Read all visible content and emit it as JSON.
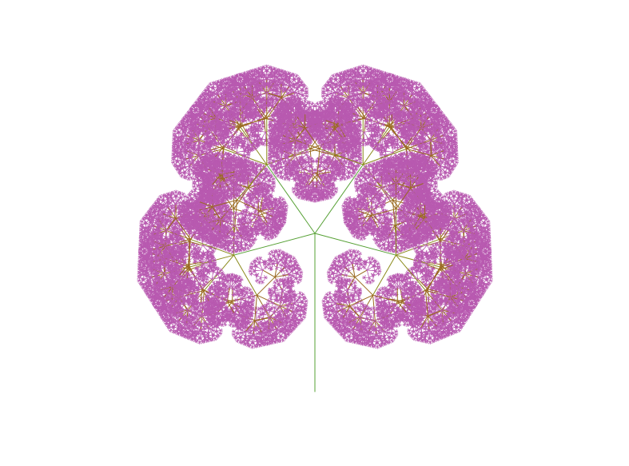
{
  "image": {
    "subject": "fractal-tree",
    "background_color": "#ffffff",
    "colors": {
      "trunk": "#55a033",
      "mid_branches": "#8a8a1a",
      "inner_branches": "#9a6a20",
      "tips": "#b85ab0"
    },
    "fractal": {
      "branches_per_node": 5,
      "recursion_depth": 7,
      "scale_per_level": 0.38,
      "fan_angles_deg": [
        -105,
        -35,
        0,
        35,
        105
      ]
    }
  }
}
